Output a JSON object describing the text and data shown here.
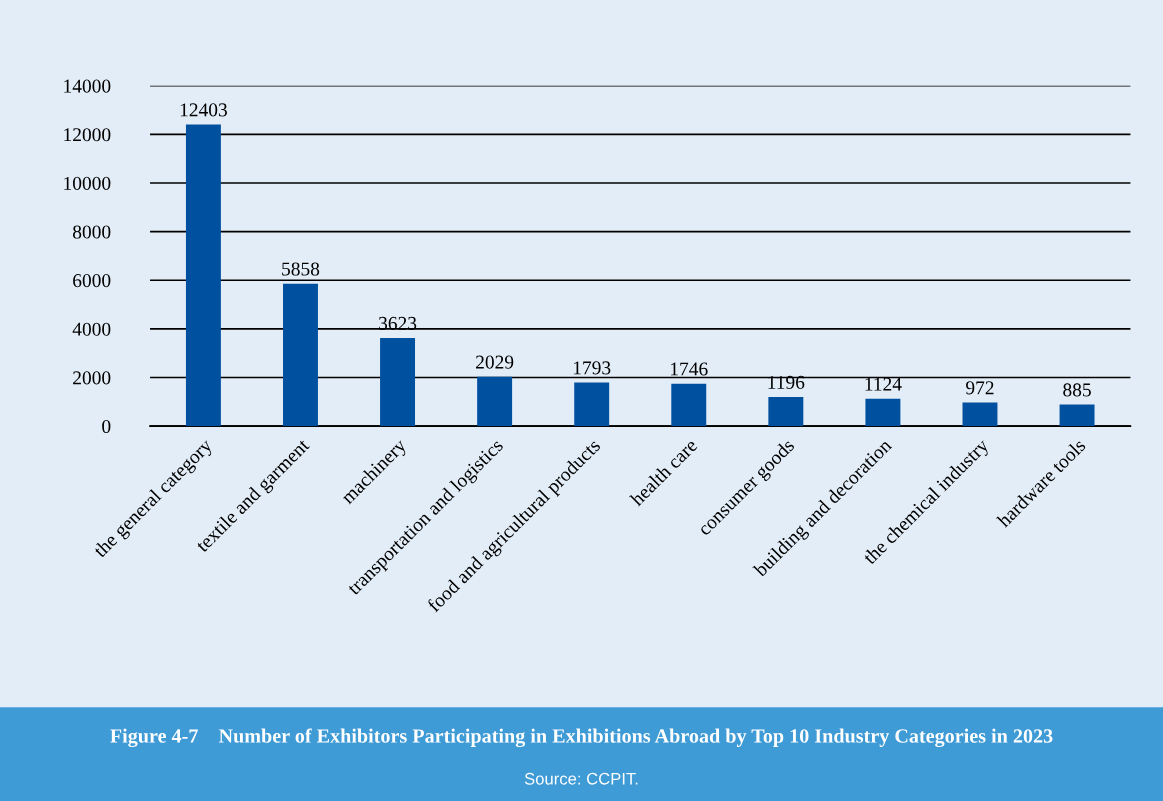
{
  "chart_data": {
    "type": "bar",
    "title": "Figure 4-7    Number of Exhibitors Participating in Exhibitions Abroad by Top 10 Industry Categories in 2023",
    "categories": [
      "the general category",
      "textile and garment",
      "machinery",
      "transportation and logistics",
      "food and agricultural products",
      "health care",
      "consumer goods",
      "building and decoration",
      "the chemical industry",
      "hardware tools"
    ],
    "values": [
      12403,
      5858,
      3623,
      2029,
      1793,
      1746,
      1196,
      1124,
      972,
      885
    ],
    "color": "#0050a0",
    "ylim": [
      0,
      14000
    ],
    "yticks": [
      0,
      2000,
      4000,
      6000,
      8000,
      10000,
      12000,
      14000
    ],
    "grid": "y",
    "data_labels": true,
    "annotations": [
      "Source: CCPIT."
    ]
  }
}
